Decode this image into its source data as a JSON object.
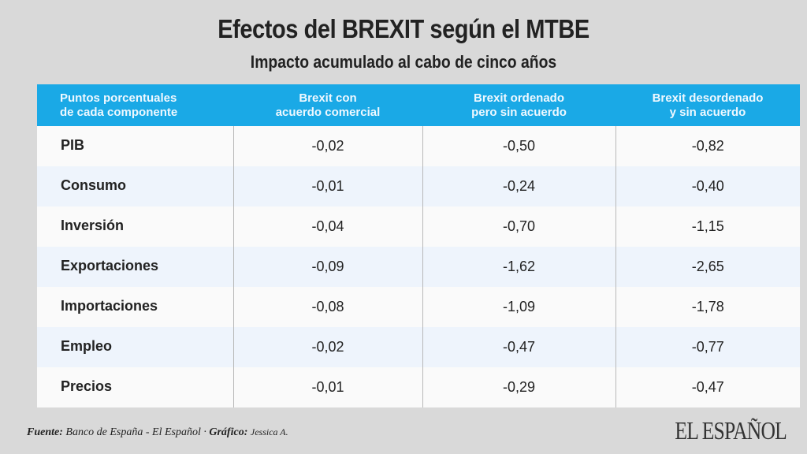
{
  "title": "Efectos del BREXIT según el MTBE",
  "subtitle": "Impacto acumulado al cabo de cinco años",
  "chart_data": {
    "type": "table",
    "columns": [
      "Puntos porcentuales de cada componente",
      "Brexit con acuerdo comercial",
      "Brexit ordenado pero sin acuerdo",
      "Brexit desordenado y sin acuerdo"
    ],
    "header_lines": [
      [
        "Puntos porcentuales",
        "de cada componente"
      ],
      [
        "Brexit con",
        "acuerdo comercial"
      ],
      [
        "Brexit ordenado",
        "pero sin acuerdo"
      ],
      [
        "Brexit desordenado",
        "y sin acuerdo"
      ]
    ],
    "rows": [
      [
        "PIB",
        "-0,02",
        "-0,50",
        "-0,82"
      ],
      [
        "Consumo",
        "-0,01",
        "-0,24",
        "-0,40"
      ],
      [
        "Inversión",
        "-0,04",
        "-0,70",
        "-1,15"
      ],
      [
        "Exportaciones",
        "-0,09",
        "-1,62",
        "-2,65"
      ],
      [
        "Importaciones",
        "-0,08",
        "-1,09",
        "-1,78"
      ],
      [
        "Empleo",
        "-0,02",
        "-0,47",
        "-0,77"
      ],
      [
        "Precios",
        "-0,01",
        "-0,29",
        "-0,47"
      ]
    ]
  },
  "footer": {
    "source_label": "Fuente:",
    "source": "Banco de España - El Español ·",
    "graphic_label": "Gráfico:",
    "author": "Jessica A."
  },
  "logo": "EL ESPAÑOL",
  "colors": {
    "header": "#1aa9e6",
    "row_alt": "#eef4fc",
    "background": "#d9d9d9"
  }
}
